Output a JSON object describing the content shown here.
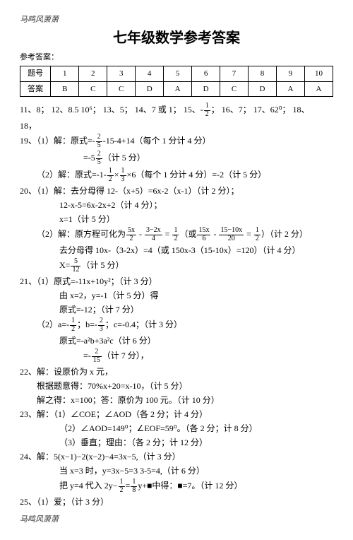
{
  "watermark_top": "马鸣风萧萧",
  "title": "七年级数学参考答案",
  "subhead": "参考答案：",
  "table": {
    "header_label": "题号",
    "answer_label": "答案",
    "nums": [
      "1",
      "2",
      "3",
      "4",
      "5",
      "6",
      "7",
      "8",
      "9",
      "10"
    ],
    "answers": [
      "B",
      "C",
      "C",
      "D",
      "A",
      "D",
      "C",
      "D",
      "A",
      "A"
    ]
  },
  "q11_18_a": "11、8；  12、8.5  10⁶；  13、5；  14、7 或 1；  15、-",
  "q11_18_b": "；  16、7；  17、62⁰；  18、",
  "q18end": "18，",
  "q19_a": "19、（1）解：原式=-",
  "q19_b": "-15-4+14（每个 1 分计 4 分）",
  "q19_c": "=-5",
  "q19_d": "（计 5 分）",
  "q19_e": "（2）解：原式=-1-",
  "q19_f": "×",
  "q19_g": "×6（每个 1 分计 4 分）=-2（计 5 分）",
  "q20_a": "20、（1）解：去分母得 12-（x+5）=6x-2（x-1）（计 2 分）；",
  "q20_b": "12-x-5=6x-2x+2（计 4 分）；",
  "q20_c": "x=1（计 5 分）",
  "q20_d1": "（2）解：原方程可化为",
  "q20_d2": " - ",
  "q20_d3": " = ",
  "q20_d4": "（或",
  "q20_d5": " - ",
  "q20_d6": " = ",
  "q20_d7": "）（计 2 分）",
  "q20_e": "去分母得 10x-（3-2x）=4（或 150x-3（15-10x）=120）（计 4 分）",
  "q20_f": "X=",
  "q20_g": "（计 5 分）",
  "q21_a": "21、（1）原式=-11x+10y²；（计 3 分）",
  "q21_b": "由 x=2，y=-1（计 5 分）得",
  "q21_c": "原式=-12；（计 7 分）",
  "q21_d1": "（2）a=-",
  "q21_d2": "；b=-",
  "q21_d3": "；c=-0.4；（计 3 分）",
  "q21_e": "原式=-a²b+3a²c（计 6 分）",
  "q21_f1": "=-",
  "q21_f2": "（计 7 分），",
  "q22_a": "22、解：设原价为 x 元，",
  "q22_b": "根据题意得：70%x+20=x-10，（计 5 分）",
  "q22_c": "解之得：x=100；答：原价为 100 元。（计 10 分）",
  "q23_a": "23、解：（1）∠COE；∠AOD（各 2 分；计 4 分）",
  "q23_b": "（2）∠AOD=149⁰；∠EOF=59⁰。（各 2 分；计 8 分）",
  "q23_c": "（3）垂直；理由：（各 2 分；计 12 分）",
  "q24_a": "24、解：5(x−1)−2(x−2)−4=3x−5,（计 3 分）",
  "q24_b": "当 x=3 时，y=3x−5=3  3-5=4,（计 6 分）",
  "q24_c1": "把 y=4 代入 2y−",
  "q24_c2": "=",
  "q24_c3": "y+■中得：■=7。（计 12 分）",
  "q25": "25、（1）爱；（计 3 分）",
  "watermark_bottom": "马鸣风萧萧",
  "fracs": {
    "half": {
      "n": "1",
      "d": "2"
    },
    "twoFifth": {
      "n": "2",
      "d": "5"
    },
    "oneThird": {
      "n": "1",
      "d": "3"
    },
    "fiveXover2": {
      "n": "5x",
      "d": "2"
    },
    "threeMinus2xOver4": {
      "n": "3−2x",
      "d": "4"
    },
    "fifteenXover6": {
      "n": "15x",
      "d": "6"
    },
    "fifteenMinus10xOver20": {
      "n": "15−10x",
      "d": "20"
    },
    "fiveTwelfth": {
      "n": "5",
      "d": "12"
    },
    "twoThird": {
      "n": "2",
      "d": "3"
    },
    "twoFifteenth": {
      "n": "2",
      "d": "15"
    },
    "oneEighth": {
      "n": "1",
      "d": "8"
    }
  }
}
